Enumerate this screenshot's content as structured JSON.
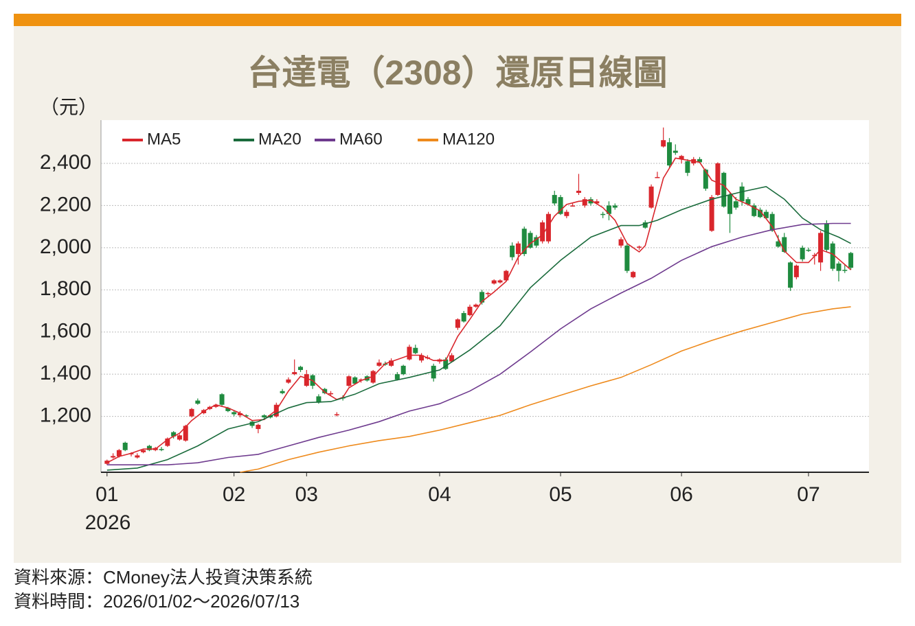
{
  "chart_data": {
    "type": "candlestick",
    "title": "台達電（2308）還原日線圖",
    "y_unit": "（元）",
    "x_year": "2026",
    "source": "資料來源：CMoney法人投資決策系統",
    "period": "資料時間：2026/01/02～2026/07/13",
    "xlim": [
      -1,
      126
    ],
    "ylim": [
      935,
      2605
    ],
    "xticks": [
      {
        "value": 0,
        "label": "01"
      },
      {
        "value": 21,
        "label": "02"
      },
      {
        "value": 33,
        "label": "03"
      },
      {
        "value": 55,
        "label": "04"
      },
      {
        "value": 75,
        "label": "05"
      },
      {
        "value": 95,
        "label": "06"
      },
      {
        "value": 116,
        "label": "07"
      }
    ],
    "yticks": [
      {
        "value": 1200,
        "label": "1,200"
      },
      {
        "value": 1400,
        "label": "1,400"
      },
      {
        "value": 1600,
        "label": "1,600"
      },
      {
        "value": 1800,
        "label": "1,800"
      },
      {
        "value": 2000,
        "label": "2,000"
      },
      {
        "value": 2200,
        "label": "2,200"
      },
      {
        "value": 2400,
        "label": "2,400"
      }
    ],
    "grid": true,
    "legend": "upper left",
    "up_color": "#d9262c",
    "down_color": "#1f8b3f",
    "candles": [
      [
        975,
        995,
        970,
        990
      ],
      [
        1005,
        1025,
        1000,
        1012
      ],
      [
        1010,
        1045,
        1005,
        1040
      ],
      [
        1075,
        1080,
        1035,
        1040
      ],
      [
        1020,
        1030,
        1010,
        1025
      ],
      [
        1005,
        1025,
        1000,
        1015
      ],
      [
        1030,
        1045,
        1025,
        1040
      ],
      [
        1060,
        1065,
        1035,
        1040
      ],
      [
        1040,
        1055,
        1035,
        1050
      ],
      [
        1045,
        1055,
        1035,
        1040
      ],
      [
        1060,
        1100,
        1055,
        1095
      ],
      [
        1125,
        1130,
        1095,
        1105
      ],
      [
        1090,
        1115,
        1085,
        1110
      ],
      [
        1085,
        1160,
        1080,
        1155
      ],
      [
        1200,
        1240,
        1195,
        1235
      ],
      [
        1275,
        1285,
        1255,
        1260
      ],
      [
        1215,
        1235,
        1210,
        1230
      ],
      [
        1235,
        1250,
        1230,
        1245
      ],
      [
        1245,
        1260,
        1240,
        1255
      ],
      [
        1305,
        1310,
        1245,
        1255
      ],
      [
        1240,
        1245,
        1220,
        1225
      ],
      [
        1220,
        1230,
        1200,
        1210
      ],
      [
        1205,
        1225,
        1195,
        1215
      ],
      [
        1205,
        1210,
        1195,
        1200
      ],
      [
        1175,
        1180,
        1145,
        1155
      ],
      [
        1140,
        1165,
        1120,
        1160
      ],
      [
        1205,
        1210,
        1190,
        1195
      ],
      [
        1205,
        1210,
        1190,
        1195
      ],
      [
        1200,
        1265,
        1195,
        1255
      ],
      [
        1320,
        1330,
        1305,
        1310
      ],
      [
        1360,
        1385,
        1355,
        1375
      ],
      [
        1400,
        1470,
        1395,
        1410
      ],
      [
        1435,
        1440,
        1410,
        1420
      ],
      [
        1345,
        1420,
        1340,
        1400
      ],
      [
        1395,
        1400,
        1330,
        1345
      ],
      [
        1295,
        1305,
        1260,
        1265
      ],
      [
        1330,
        1335,
        1305,
        1310
      ],
      [
        1305,
        1320,
        1300,
        1310
      ],
      [
        1205,
        1220,
        1200,
        1210
      ],
      [
        1290,
        1300,
        1275,
        1285
      ],
      [
        1345,
        1395,
        1340,
        1390
      ],
      [
        1385,
        1390,
        1350,
        1355
      ],
      [
        1370,
        1380,
        1360,
        1375
      ],
      [
        1390,
        1395,
        1365,
        1370
      ],
      [
        1360,
        1420,
        1355,
        1415
      ],
      [
        1440,
        1470,
        1435,
        1455
      ],
      [
        1450,
        1460,
        1440,
        1445
      ],
      [
        1440,
        1475,
        1435,
        1465
      ],
      [
        1400,
        1410,
        1370,
        1375
      ],
      [
        1440,
        1445,
        1395,
        1400
      ],
      [
        1470,
        1540,
        1465,
        1530
      ],
      [
        1525,
        1540,
        1495,
        1500
      ],
      [
        1465,
        1500,
        1455,
        1490
      ],
      [
        1475,
        1490,
        1470,
        1480
      ],
      [
        1440,
        1450,
        1365,
        1380
      ],
      [
        1460,
        1475,
        1450,
        1470
      ],
      [
        1470,
        1480,
        1420,
        1425
      ],
      [
        1460,
        1500,
        1455,
        1490
      ],
      [
        1620,
        1665,
        1610,
        1660
      ],
      [
        1690,
        1700,
        1645,
        1650
      ],
      [
        1680,
        1730,
        1675,
        1720
      ],
      [
        1720,
        1735,
        1715,
        1730
      ],
      [
        1790,
        1800,
        1730,
        1740
      ],
      [
        1780,
        1790,
        1770,
        1785
      ],
      [
        1830,
        1850,
        1825,
        1845
      ],
      [
        1835,
        1850,
        1830,
        1845
      ],
      [
        1845,
        1895,
        1840,
        1890
      ],
      [
        2010,
        2025,
        1940,
        1955
      ],
      [
        1970,
        2030,
        1920,
        2020
      ],
      [
        2090,
        2100,
        1960,
        1970
      ],
      [
        2070,
        2080,
        1995,
        2000
      ],
      [
        2050,
        2060,
        2000,
        2010
      ],
      [
        2030,
        2130,
        2020,
        2120
      ],
      [
        2030,
        2170,
        2020,
        2160
      ],
      [
        2250,
        2270,
        2200,
        2210
      ],
      [
        2240,
        2250,
        2155,
        2160
      ],
      [
        2150,
        2180,
        2140,
        2170
      ],
      [
        2200,
        2210,
        2195,
        2200
      ],
      [
        2260,
        2350,
        2250,
        2270
      ],
      [
        2200,
        2240,
        2190,
        2230
      ],
      [
        2230,
        2240,
        2200,
        2210
      ],
      [
        2210,
        2230,
        2205,
        2220
      ],
      [
        2160,
        2170,
        2140,
        2155
      ],
      [
        2200,
        2220,
        2130,
        2160
      ],
      [
        2200,
        2210,
        2180,
        2190
      ],
      [
        2010,
        2050,
        2000,
        2040
      ],
      [
        2010,
        2020,
        1880,
        1890
      ],
      [
        1860,
        1890,
        1855,
        1885
      ],
      [
        2000,
        2010,
        1990,
        2005
      ],
      [
        2120,
        2130,
        2090,
        2095
      ],
      [
        2190,
        2300,
        2185,
        2290
      ],
      [
        2330,
        2360,
        2330,
        2335
      ],
      [
        2480,
        2570,
        2475,
        2510
      ],
      [
        2500,
        2520,
        2380,
        2390
      ],
      [
        2460,
        2490,
        2440,
        2450
      ],
      [
        2420,
        2440,
        2400,
        2435
      ],
      [
        2410,
        2420,
        2340,
        2355
      ],
      [
        2400,
        2430,
        2390,
        2420
      ],
      [
        2420,
        2430,
        2400,
        2405
      ],
      [
        2370,
        2375,
        2270,
        2280
      ],
      [
        2080,
        2250,
        2075,
        2240
      ],
      [
        2250,
        2405,
        2245,
        2400
      ],
      [
        2355,
        2360,
        2190,
        2195
      ],
      [
        2250,
        2260,
        2070,
        2160
      ],
      [
        2220,
        2240,
        2180,
        2190
      ],
      [
        2290,
        2310,
        2200,
        2220
      ],
      [
        2230,
        2240,
        2200,
        2205
      ],
      [
        2200,
        2210,
        2145,
        2150
      ],
      [
        2180,
        2190,
        2140,
        2145
      ],
      [
        2170,
        2180,
        2135,
        2140
      ],
      [
        2160,
        2170,
        2075,
        2080
      ],
      [
        2030,
        2060,
        2000,
        2005
      ],
      [
        2050,
        2070,
        1975,
        1980
      ],
      [
        1930,
        1935,
        1795,
        1810
      ],
      [
        1860,
        1920,
        1850,
        1915
      ],
      [
        2000,
        2010,
        1935,
        1945
      ],
      [
        1990,
        2000,
        1980,
        1985
      ],
      [
        1960,
        1975,
        1920,
        1965
      ],
      [
        1930,
        2080,
        1890,
        2070
      ],
      [
        2115,
        2130,
        1980,
        1990
      ],
      [
        2020,
        2030,
        1890,
        1900
      ],
      [
        1925,
        1935,
        1840,
        1890
      ],
      [
        1895,
        1920,
        1880,
        1890
      ],
      [
        1975,
        1980,
        1895,
        1905
      ]
    ],
    "lines": [
      {
        "name": "MA5",
        "color": "#d9262c",
        "x": [
          0,
          2,
          4,
          6,
          8,
          10,
          12,
          14,
          16,
          18,
          20,
          22,
          24,
          26,
          28,
          30,
          32,
          34,
          36,
          38,
          39,
          40,
          42,
          44,
          46,
          48,
          50,
          52,
          54,
          56,
          58,
          60,
          62,
          64,
          66,
          68,
          70,
          72,
          74,
          76,
          78,
          80,
          82,
          84,
          86,
          88,
          89,
          90,
          92,
          94,
          96,
          98,
          100,
          102,
          104,
          106,
          108,
          110,
          112,
          114,
          116,
          118,
          120,
          122,
          123
        ],
        "values": [
          980,
          1010,
          1025,
          1045,
          1045,
          1090,
          1120,
          1180,
          1225,
          1255,
          1240,
          1215,
          1180,
          1185,
          1230,
          1320,
          1390,
          1370,
          1315,
          1280,
          1290,
          1335,
          1370,
          1390,
          1450,
          1470,
          1490,
          1490,
          1465,
          1465,
          1580,
          1660,
          1745,
          1790,
          1840,
          1955,
          2020,
          2060,
          2150,
          2205,
          2220,
          2225,
          2190,
          2130,
          2020,
          1980,
          2010,
          2115,
          2330,
          2425,
          2415,
          2405,
          2320,
          2295,
          2230,
          2205,
          2175,
          2100,
          1985,
          1930,
          1930,
          1990,
          1970,
          1920,
          1895
        ]
      },
      {
        "name": "MA20",
        "color": "#1a6b3c",
        "x": [
          0,
          5,
          10,
          15,
          20,
          25,
          30,
          33,
          37,
          41,
          45,
          50,
          55,
          60,
          65,
          70,
          75,
          80,
          85,
          88,
          91,
          95,
          100,
          105,
          109,
          112,
          115,
          118,
          121,
          123
        ],
        "values": [
          945,
          955,
          995,
          1060,
          1140,
          1175,
          1240,
          1265,
          1270,
          1305,
          1355,
          1385,
          1420,
          1515,
          1630,
          1810,
          1940,
          2050,
          2105,
          2105,
          2130,
          2180,
          2230,
          2265,
          2290,
          2230,
          2140,
          2085,
          2050,
          2020
        ]
      },
      {
        "name": "MA60",
        "color": "#6e3a8e",
        "x": [
          0,
          10,
          15,
          20,
          25,
          30,
          35,
          40,
          45,
          50,
          55,
          60,
          65,
          70,
          75,
          80,
          85,
          90,
          95,
          100,
          105,
          110,
          115,
          120,
          123
        ],
        "values": [
          970,
          970,
          980,
          1005,
          1020,
          1060,
          1100,
          1135,
          1175,
          1225,
          1260,
          1320,
          1400,
          1505,
          1615,
          1710,
          1785,
          1855,
          1940,
          2005,
          2050,
          2085,
          2110,
          2115,
          2115
        ]
      },
      {
        "name": "MA120",
        "color": "#ee8a1c",
        "x": [
          22,
          25,
          30,
          35,
          40,
          45,
          50,
          55,
          60,
          65,
          70,
          75,
          80,
          85,
          90,
          95,
          100,
          105,
          110,
          115,
          120,
          123
        ],
        "values": [
          935,
          950,
          995,
          1030,
          1060,
          1085,
          1105,
          1135,
          1170,
          1205,
          1255,
          1300,
          1345,
          1385,
          1445,
          1510,
          1560,
          1605,
          1645,
          1685,
          1710,
          1720
        ]
      }
    ]
  }
}
